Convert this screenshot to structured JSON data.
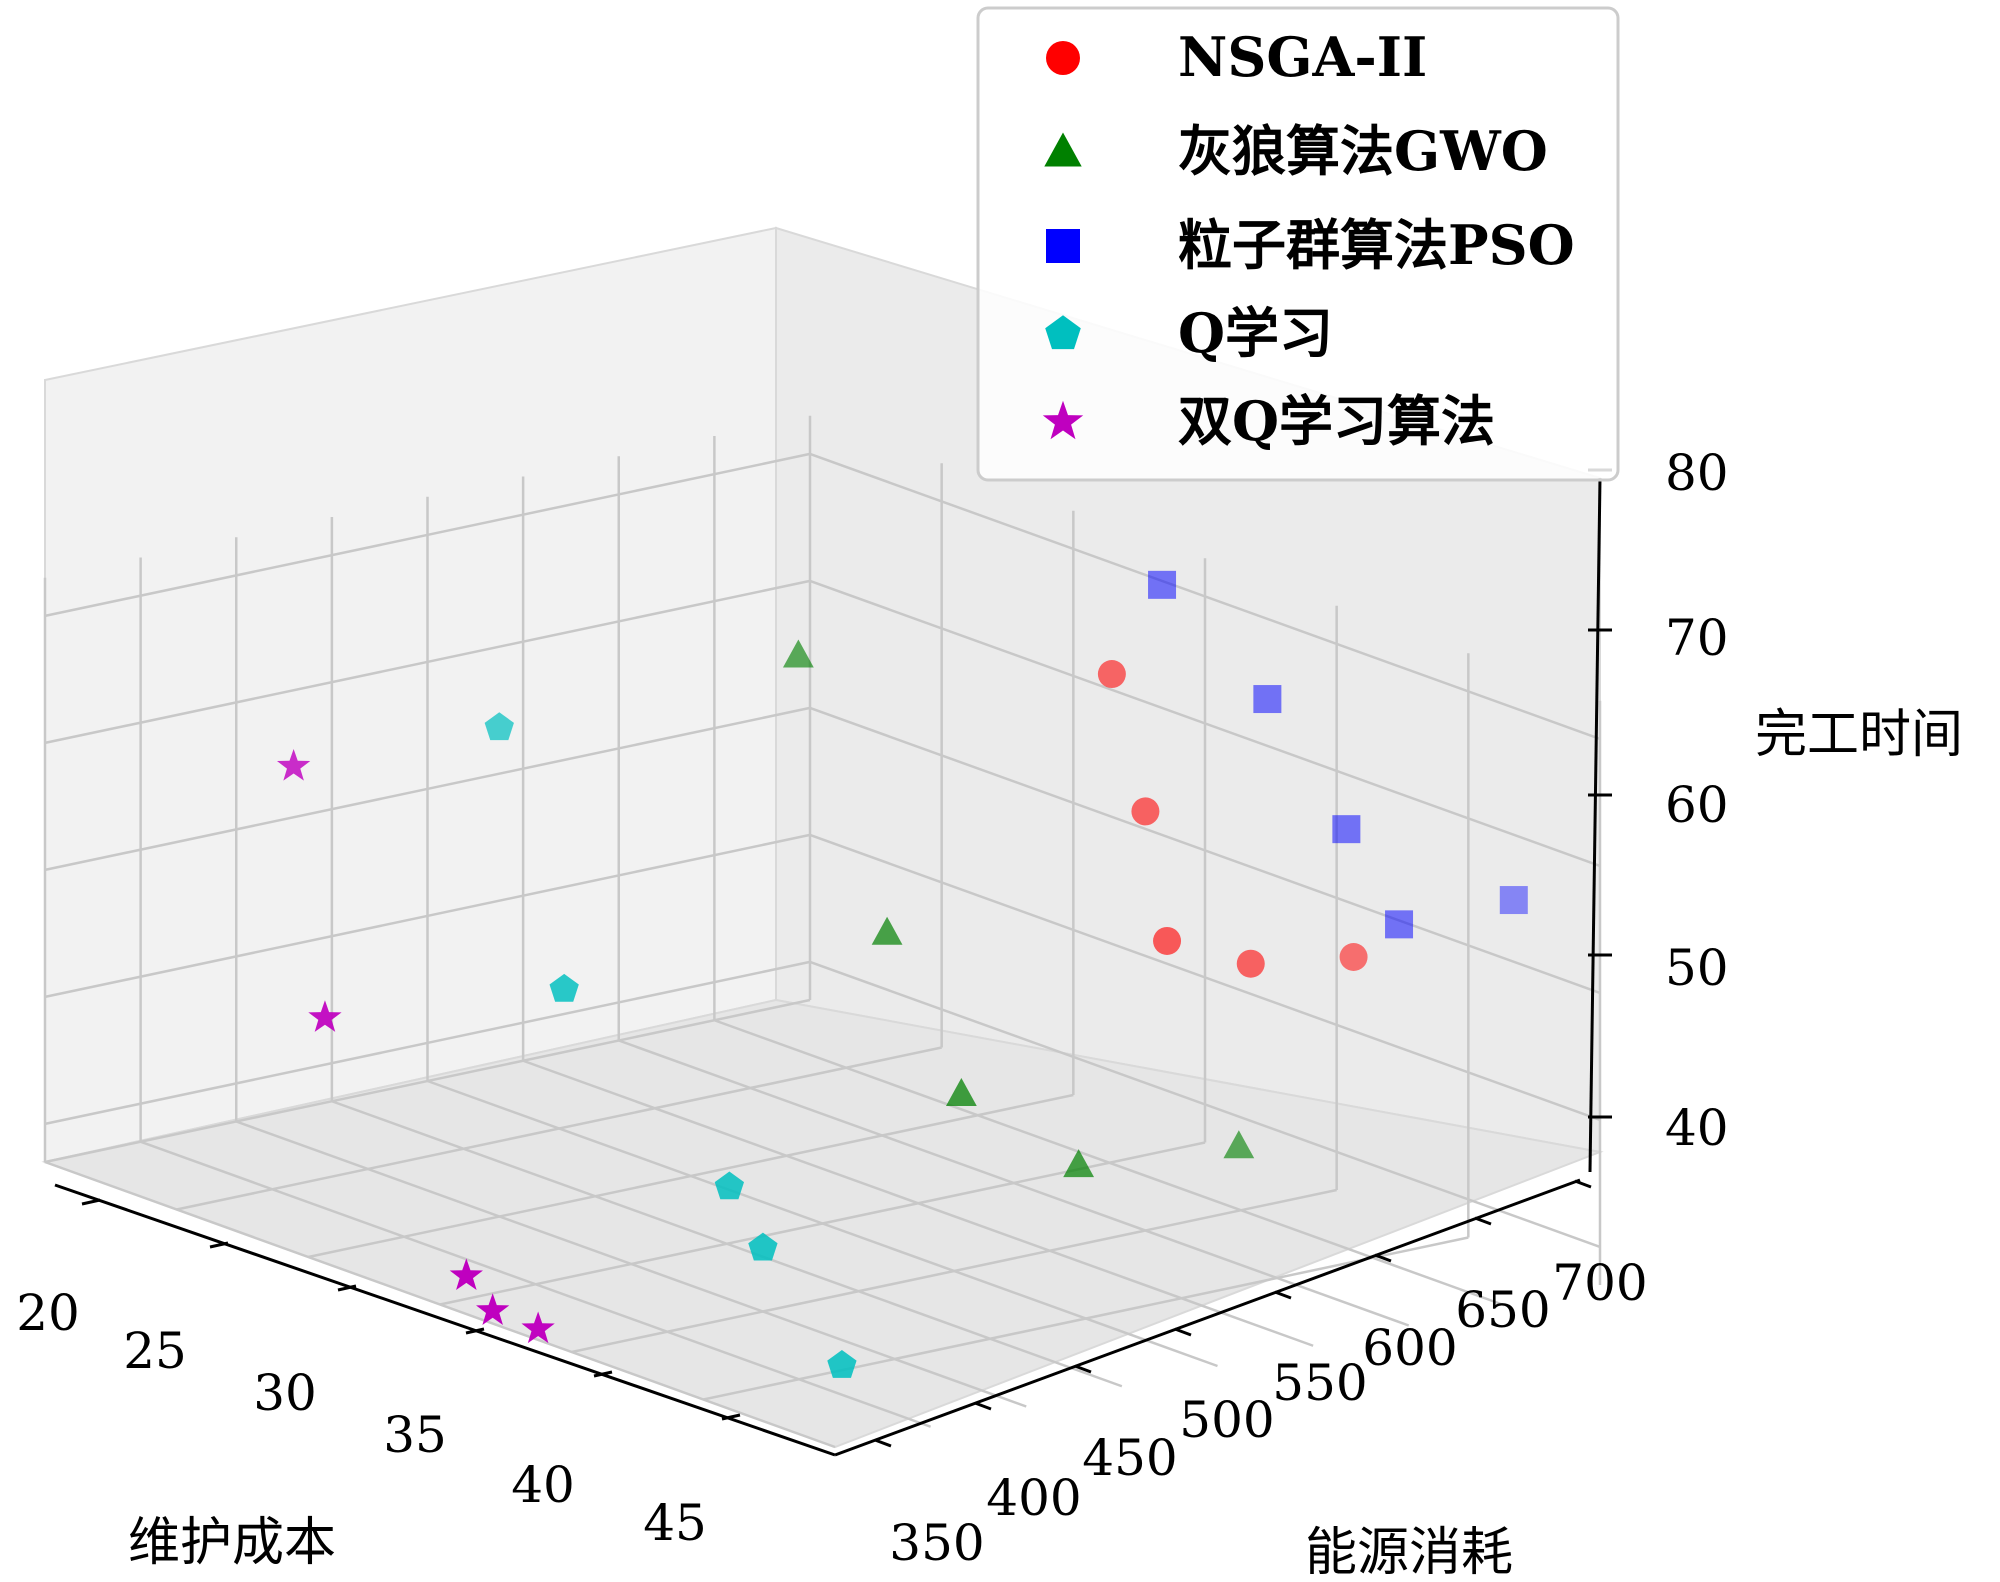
{
  "chart_data": {
    "type": "scatter3d",
    "title": "",
    "xlabel": "维护成本",
    "ylabel": "能源消耗",
    "zlabel": "完工时间",
    "xticks": [
      "20",
      "25",
      "30",
      "35",
      "40",
      "45"
    ],
    "yticks": [
      "350",
      "400",
      "450",
      "500",
      "550",
      "600",
      "650",
      "700"
    ],
    "zticks": [
      "40",
      "50",
      "60",
      "70",
      "80"
    ],
    "legend_position": "top-right",
    "grid": true,
    "series": [
      {
        "name": "NSGA-II",
        "color": "#ff0000",
        "marker": "circle",
        "points": [
          {
            "x": 38,
            "y": 660,
            "z": 79
          },
          {
            "x": 40,
            "y": 650,
            "z": 70
          },
          {
            "x": 43,
            "y": 620,
            "z": 63
          },
          {
            "x": 44,
            "y": 650,
            "z": 61
          },
          {
            "x": 45,
            "y": 690,
            "z": 61
          }
        ]
      },
      {
        "name": "灰狼算法GWO",
        "color": "#008000",
        "marker": "triangle",
        "points": [
          {
            "x": 29,
            "y": 620,
            "z": 75
          },
          {
            "x": 36,
            "y": 570,
            "z": 60
          },
          {
            "x": 41,
            "y": 540,
            "z": 52
          },
          {
            "x": 44,
            "y": 560,
            "z": 48
          },
          {
            "x": 45,
            "y": 630,
            "z": 48
          }
        ]
      },
      {
        "name": "粒子群算法PSO",
        "color": "#0000ff",
        "marker": "square",
        "points": [
          {
            "x": 37,
            "y": 700,
            "z": 84
          },
          {
            "x": 41,
            "y": 700,
            "z": 78
          },
          {
            "x": 44,
            "y": 700,
            "z": 70
          },
          {
            "x": 46,
            "y": 700,
            "z": 64
          },
          {
            "x": 46,
            "y": 760,
            "z": 64
          }
        ]
      },
      {
        "name": "Q学习",
        "color": "#00bfbf",
        "marker": "pentagon",
        "points": [
          {
            "x": 22,
            "y": 560,
            "z": 66
          },
          {
            "x": 31,
            "y": 470,
            "z": 55
          },
          {
            "x": 38,
            "y": 460,
            "z": 45
          },
          {
            "x": 40,
            "y": 450,
            "z": 42
          },
          {
            "x": 43,
            "y": 450,
            "z": 35
          }
        ]
      },
      {
        "name": "双Q学习算法",
        "color": "#bf00bf",
        "marker": "star",
        "points": [
          {
            "x": 20,
            "y": 480,
            "z": 64
          },
          {
            "x": 27,
            "y": 400,
            "z": 52
          },
          {
            "x": 36,
            "y": 350,
            "z": 40
          },
          {
            "x": 37,
            "y": 350,
            "z": 38
          },
          {
            "x": 38,
            "y": 360,
            "z": 37
          }
        ]
      }
    ]
  }
}
